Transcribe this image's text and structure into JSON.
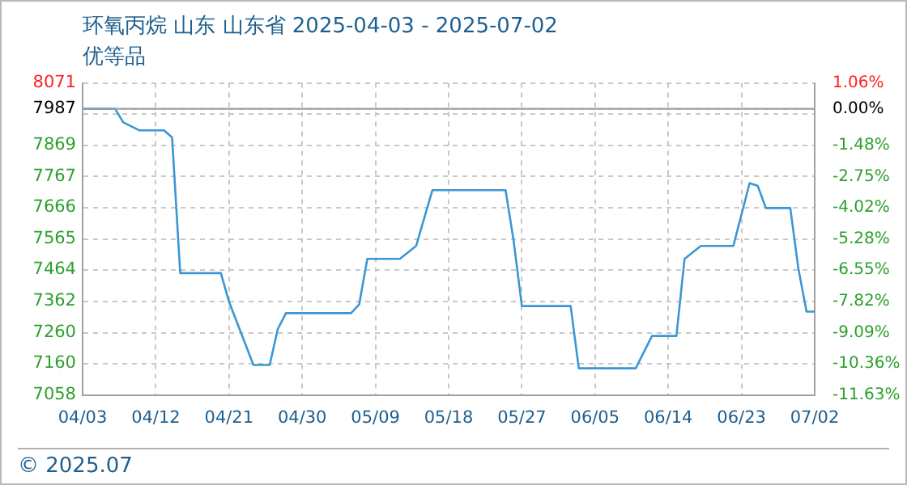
{
  "chart_data": {
    "type": "line",
    "title": "环氧丙烷 山东 山东省 2025-04-03 - 2025-07-02",
    "subtitle": "优等品",
    "annotations": [
      "© 2025.07"
    ],
    "x": [
      "2025-04-03",
      "2025-04-07",
      "2025-04-08",
      "2025-04-10",
      "2025-04-13",
      "2025-04-14",
      "2025-04-15",
      "2025-04-20",
      "2025-04-21",
      "2025-04-24",
      "2025-04-26",
      "2025-04-27",
      "2025-04-28",
      "2025-05-06",
      "2025-05-07",
      "2025-05-08",
      "2025-05-12",
      "2025-05-14",
      "2025-05-16",
      "2025-05-25",
      "2025-05-26",
      "2025-05-27",
      "2025-06-02",
      "2025-06-03",
      "2025-06-10",
      "2025-06-12",
      "2025-06-15",
      "2025-06-16",
      "2025-06-18",
      "2025-06-22",
      "2025-06-24",
      "2025-06-25",
      "2025-06-26",
      "2025-06-29",
      "2025-06-30",
      "2025-07-01",
      "2025-07-02"
    ],
    "series": [
      {
        "color": "#3a97d4",
        "values": [
          7987,
          7987,
          7943,
          7917,
          7917,
          7894,
          7454,
          7454,
          7361,
          7156,
          7156,
          7273,
          7324,
          7324,
          7352,
          7500,
          7500,
          7542,
          7723,
          7723,
          7557,
          7347,
          7347,
          7145,
          7145,
          7250,
          7250,
          7500,
          7542,
          7542,
          7746,
          7737,
          7665,
          7665,
          7468,
          7329,
          7329
        ]
      }
    ],
    "xlim": [
      "2025-04-03",
      "2025-07-02"
    ],
    "xticks": [
      {
        "value": "2025-04-03",
        "label": "04/03"
      },
      {
        "value": "2025-04-12",
        "label": "04/12"
      },
      {
        "value": "2025-04-21",
        "label": "04/21"
      },
      {
        "value": "2025-04-30",
        "label": "04/30"
      },
      {
        "value": "2025-05-09",
        "label": "05/09"
      },
      {
        "value": "2025-05-18",
        "label": "05/18"
      },
      {
        "value": "2025-05-27",
        "label": "05/27"
      },
      {
        "value": "2025-06-05",
        "label": "06/05"
      },
      {
        "value": "2025-06-14",
        "label": "06/14"
      },
      {
        "value": "2025-06-23",
        "label": "06/23"
      },
      {
        "value": "2025-07-02",
        "label": "07/02"
      }
    ],
    "ylim": [
      7058,
      8071
    ],
    "yticks": [
      7058,
      7160,
      7260,
      7362,
      7464,
      7565,
      7666,
      7767,
      7869,
      {
        "value": 7970,
        "label": null
      },
      7987,
      8071
    ],
    "y2lim": [
      -11.63,
      1.06
    ],
    "y2ticks": [
      {
        "value": -11.63,
        "label": "-11.63%"
      },
      {
        "value": -10.36,
        "label": "-10.36%"
      },
      {
        "value": -9.09,
        "label": "-9.09%"
      },
      {
        "value": -7.82,
        "label": "-7.82%"
      },
      {
        "value": -6.55,
        "label": "-6.55%"
      },
      {
        "value": -5.28,
        "label": "-5.28%"
      },
      {
        "value": -4.02,
        "label": "-4.02%"
      },
      {
        "value": -2.75,
        "label": "-2.75%"
      },
      {
        "value": -1.48,
        "label": "-1.48%"
      },
      {
        "value": 0,
        "label": "0.00%"
      },
      {
        "value": 1.06,
        "label": "1.06%"
      }
    ],
    "ref_lines": [
      {
        "axis": "y",
        "value": 7987,
        "color": "#a0a0a0"
      }
    ],
    "grid": true,
    "legend": false,
    "marker": "none",
    "line_style": "solid"
  }
}
